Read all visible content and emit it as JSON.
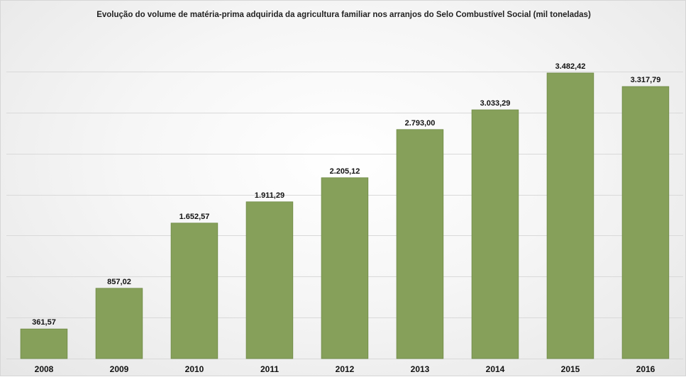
{
  "chart_data": {
    "type": "bar",
    "title": "Evolução do volume de matéria-prima adquirida da agricultura familiar nos arranjos do Selo Combustível Social (mil toneladas)",
    "xlabel": "",
    "ylabel": "",
    "categories": [
      "2008",
      "2009",
      "2010",
      "2011",
      "2012",
      "2013",
      "2014",
      "2015",
      "2016"
    ],
    "values": [
      361.57,
      857.02,
      1652.57,
      1911.29,
      2205.12,
      2793.0,
      3033.29,
      3482.42,
      3317.79
    ],
    "value_labels": [
      "361,57",
      "857,02",
      "1.652,57",
      "1.911,29",
      "2.205,12",
      "2.793,00",
      "3.033,29",
      "3.482,42",
      "3.317,79"
    ],
    "ylim": [
      0,
      3500
    ],
    "ygrid_step": 500,
    "grid": true,
    "show_y_axis_labels": false,
    "legend": "none",
    "bar_color": "#86a05a",
    "bar_edge_color": "#6f8a45",
    "grid_color": "#d9d9d9"
  }
}
